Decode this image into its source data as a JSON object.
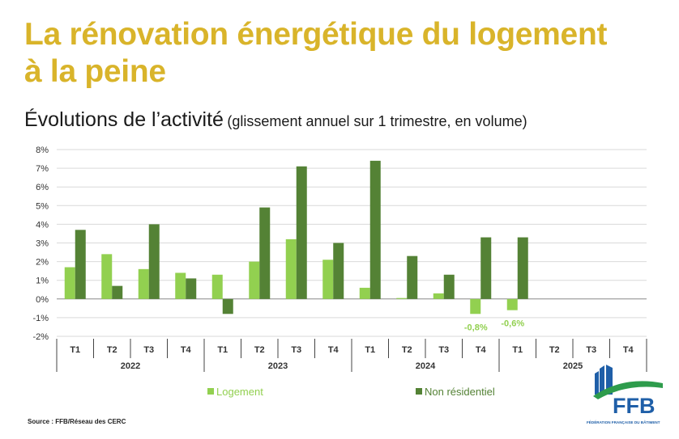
{
  "header": {
    "title_line1": "La rénovation énergétique du logement",
    "title_line2": "à la peine",
    "subtitle_main": "Évolutions de l’activité",
    "subtitle_paren": "(glissement annuel sur 1 trimestre, en volume)"
  },
  "chart_data": {
    "type": "bar",
    "title": "",
    "xlabel": "",
    "ylabel": "",
    "ylim": [
      -2,
      8
    ],
    "yticks": [
      "-2%",
      "-1%",
      "0%",
      "1%",
      "2%",
      "3%",
      "4%",
      "5%",
      "6%",
      "7%",
      "8%"
    ],
    "grid": true,
    "legend_position": "bottom",
    "categories": [
      "T1",
      "T2",
      "T3",
      "T4",
      "T1",
      "T2",
      "T3",
      "T4",
      "T1",
      "T2",
      "T3",
      "T4",
      "T1",
      "T2",
      "T3",
      "T4"
    ],
    "years": [
      "2022",
      "2023",
      "2024",
      "2025"
    ],
    "series": [
      {
        "name": "Logement",
        "color": "#92d050",
        "values": [
          1.7,
          2.4,
          1.6,
          1.4,
          1.3,
          2.0,
          3.2,
          2.1,
          0.6,
          0.05,
          0.3,
          -0.8,
          -0.6,
          null,
          null,
          null
        ]
      },
      {
        "name": "Non résidentiel",
        "color": "#548235",
        "values": [
          3.7,
          0.7,
          4.0,
          1.1,
          -0.8,
          4.9,
          7.1,
          3.0,
          7.4,
          2.3,
          1.3,
          3.3,
          3.3,
          null,
          null,
          null
        ]
      }
    ],
    "annotations": [
      {
        "text": "-0,8%",
        "category_index": 11,
        "value": -0.8,
        "color": "#92d050"
      },
      {
        "text": "-0,6%",
        "category_index": 12,
        "value": -0.6,
        "color": "#92d050"
      }
    ]
  },
  "footer": {
    "source": "Source : FFB/Réseau des CERC"
  },
  "logo": {
    "text": "FFB",
    "tagline": "FÉDÉRATION FRANÇAISE DU BÂTIMENT"
  }
}
